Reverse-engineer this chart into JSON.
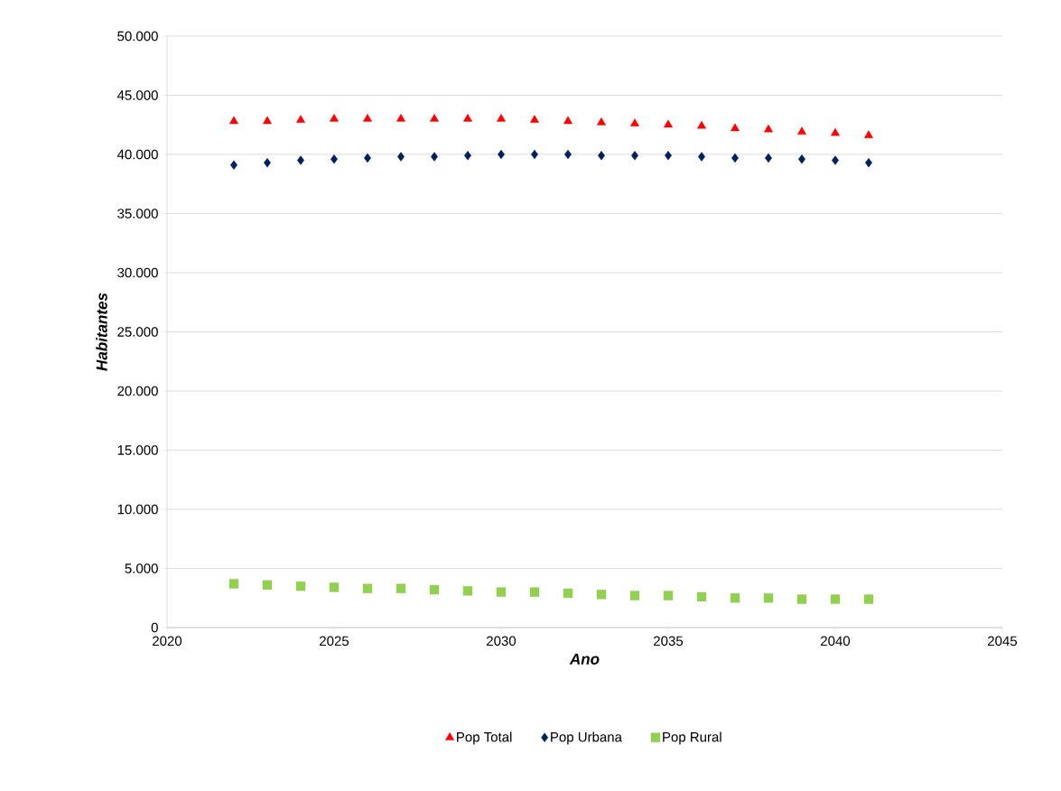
{
  "chart_data": {
    "type": "scatter",
    "xlabel": "Ano",
    "ylabel": "Habitantes",
    "x": [
      2022,
      2023,
      2024,
      2025,
      2026,
      2027,
      2028,
      2029,
      2030,
      2031,
      2032,
      2033,
      2034,
      2035,
      2036,
      2037,
      2038,
      2039,
      2040,
      2041
    ],
    "series": [
      {
        "name": "Pop Total",
        "color": "#ff0000",
        "marker": "triangle",
        "values": [
          42800,
          42800,
          42900,
          43000,
          43000,
          43000,
          43000,
          43000,
          43000,
          42900,
          42800,
          42700,
          42600,
          42500,
          42400,
          42200,
          42100,
          41900,
          41800,
          41600
        ]
      },
      {
        "name": "Pop Urbana",
        "color": "#002060",
        "marker": "diamond",
        "values": [
          39100,
          39300,
          39500,
          39600,
          39700,
          39800,
          39800,
          39900,
          40000,
          40000,
          40000,
          39900,
          39900,
          39900,
          39800,
          39700,
          39700,
          39600,
          39500,
          39300
        ]
      },
      {
        "name": "Pop Rural",
        "color": "#92d050",
        "marker": "square",
        "values": [
          3700,
          3600,
          3500,
          3400,
          3300,
          3300,
          3200,
          3100,
          3000,
          3000,
          2900,
          2800,
          2700,
          2700,
          2600,
          2500,
          2500,
          2400,
          2400,
          2400
        ]
      }
    ],
    "xlim": [
      2020,
      2045
    ],
    "xticks": [
      2020,
      2025,
      2030,
      2035,
      2040,
      2045
    ],
    "ylim": [
      0,
      50000
    ],
    "yticks": [
      0,
      {
        "value": 5000,
        "label": "5.000"
      },
      {
        "value": 10000,
        "label": "10.000"
      },
      {
        "value": 15000,
        "label": "15.000"
      },
      {
        "value": 20000,
        "label": "20.000"
      },
      {
        "value": 25000,
        "label": "25.000"
      },
      {
        "value": 30000,
        "label": "30.000"
      },
      {
        "value": 35000,
        "label": "35.000"
      },
      {
        "value": 40000,
        "label": "40.000"
      },
      {
        "value": 45000,
        "label": "45.000"
      },
      {
        "value": 50000,
        "label": "50.000"
      }
    ],
    "grid": "y",
    "legend": "bottom"
  }
}
